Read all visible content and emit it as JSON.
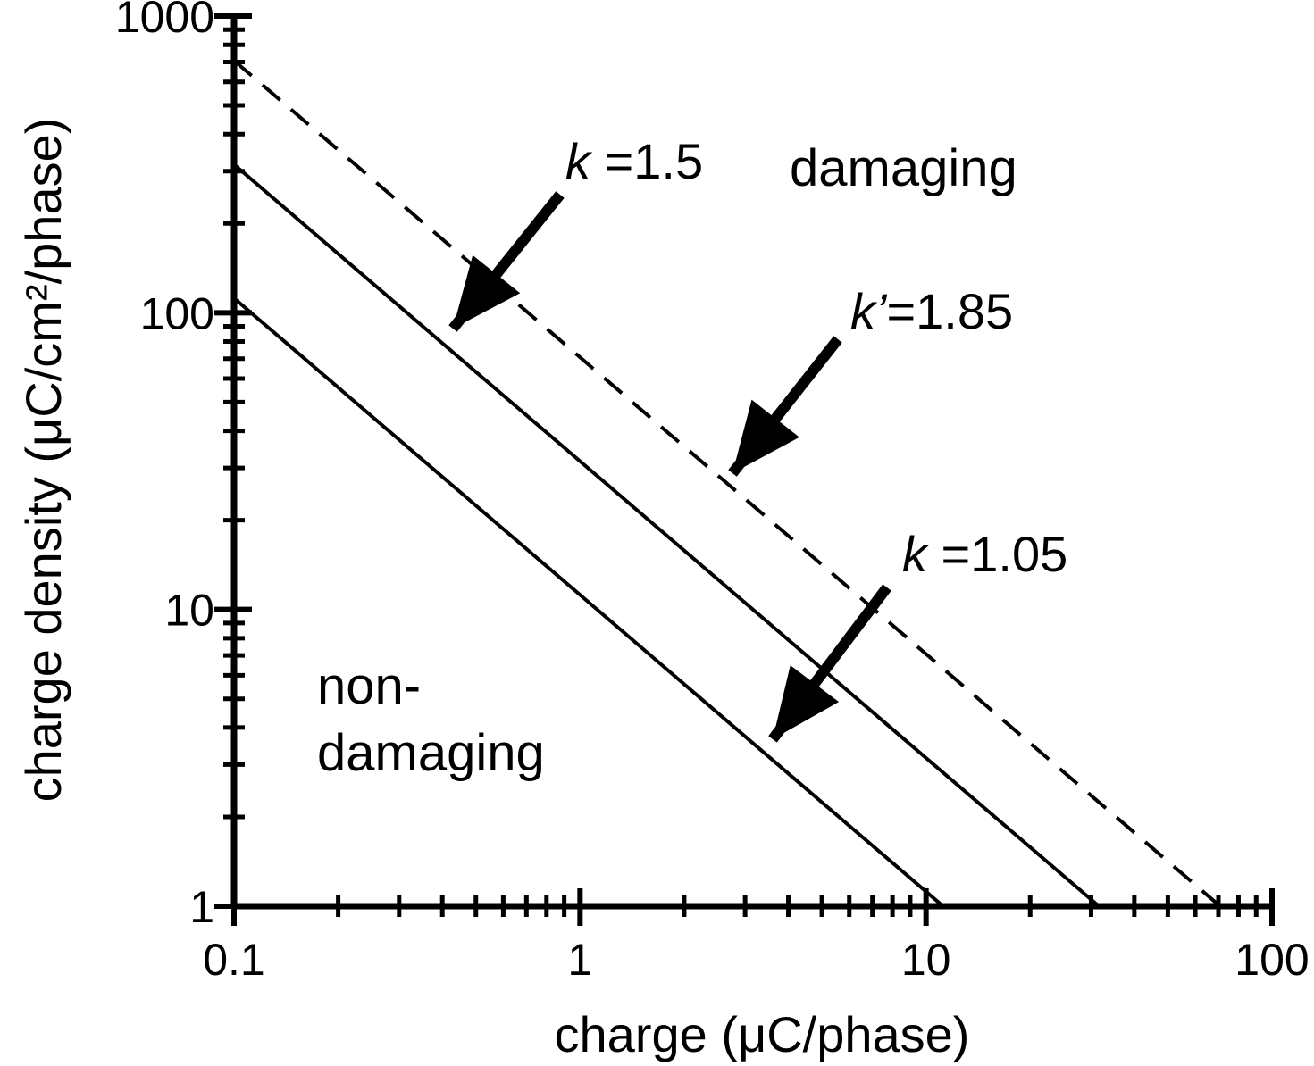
{
  "chart_data": {
    "type": "line",
    "xlabel": "charge (μC/phase)",
    "ylabel": "charge density (μC/cm²/phase)",
    "xscale": "log",
    "yscale": "log",
    "xlim": [
      0.1,
      100
    ],
    "ylim": [
      1,
      1000
    ],
    "x_ticks": [
      0.1,
      1,
      10,
      100
    ],
    "x_tick_labels": [
      "0.1",
      "1",
      "10",
      "100"
    ],
    "y_ticks": [
      1,
      10,
      100,
      1000
    ],
    "y_tick_labels": [
      "1",
      "10",
      "100",
      "1000"
    ],
    "grid": false,
    "series": [
      {
        "k": 1.05,
        "style": "solid",
        "points": [
          [
            0.1,
            112
          ],
          [
            11.2,
            1
          ]
        ]
      },
      {
        "k": 1.5,
        "style": "solid",
        "points": [
          [
            0.1,
            316
          ],
          [
            31.6,
            1
          ]
        ]
      },
      {
        "k": 1.85,
        "style": "dashed",
        "points": [
          [
            0.1,
            708
          ],
          [
            70.8,
            1
          ]
        ]
      }
    ],
    "annotations": [
      {
        "symbol": "k",
        "text": " =1.5",
        "position": "upper-middle"
      },
      {
        "symbol": "k’",
        "text": "=1.85",
        "position": "middle-right"
      },
      {
        "symbol": "k",
        "text": " =1.05",
        "position": "lower-right"
      }
    ],
    "regions": {
      "upper": "damaging",
      "lower_line1": "non-",
      "lower_line2": "damaging"
    },
    "color": "#000000"
  }
}
